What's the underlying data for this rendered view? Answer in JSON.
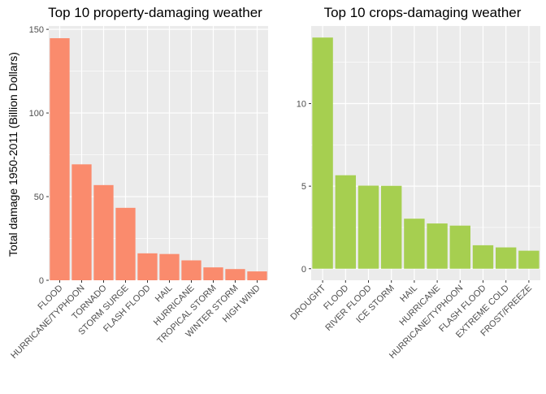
{
  "y_axis_label": "Total damage 1950-2011 (Billion Dollars)",
  "chart_data": [
    {
      "type": "bar",
      "title": "Top 10 property-damaging weather",
      "ylabel": "Total damage 1950-2011 (Billion Dollars)",
      "xlabel": "",
      "color": "#FA8B6D",
      "categories": [
        "FLOOD",
        "HURRICANE/TYPHOON",
        "TORNADO",
        "STORM SURGE",
        "FLASH FLOOD",
        "HAIL",
        "HURRICANE",
        "TROPICAL STORM",
        "WINTER STORM",
        "HIGH WIND"
      ],
      "values": [
        144.7,
        69.3,
        56.9,
        43.3,
        16.1,
        15.7,
        11.9,
        7.7,
        6.7,
        5.3
      ],
      "ylim": [
        0,
        152
      ],
      "yticks": [
        0,
        50,
        100,
        150
      ],
      "grid": true,
      "legend": "none"
    },
    {
      "type": "bar",
      "title": "Top 10 crops-damaging weather",
      "ylabel": "",
      "xlabel": "",
      "color": "#A6CF50",
      "categories": [
        "DROUGHT",
        "FLOOD",
        "RIVER FLOOD",
        "ICE STORM",
        "HAIL",
        "HURRICANE",
        "HURRICANE/TYPHOON",
        "FLASH FLOOD",
        "EXTREME COLD",
        "FROST/FREEZE"
      ],
      "values": [
        14.0,
        5.66,
        5.03,
        5.02,
        3.03,
        2.74,
        2.61,
        1.42,
        1.29,
        1.09
      ],
      "ylim": [
        -0.7,
        14.7
      ],
      "yticks": [
        0,
        5,
        10
      ],
      "grid": true,
      "legend": "none"
    }
  ]
}
